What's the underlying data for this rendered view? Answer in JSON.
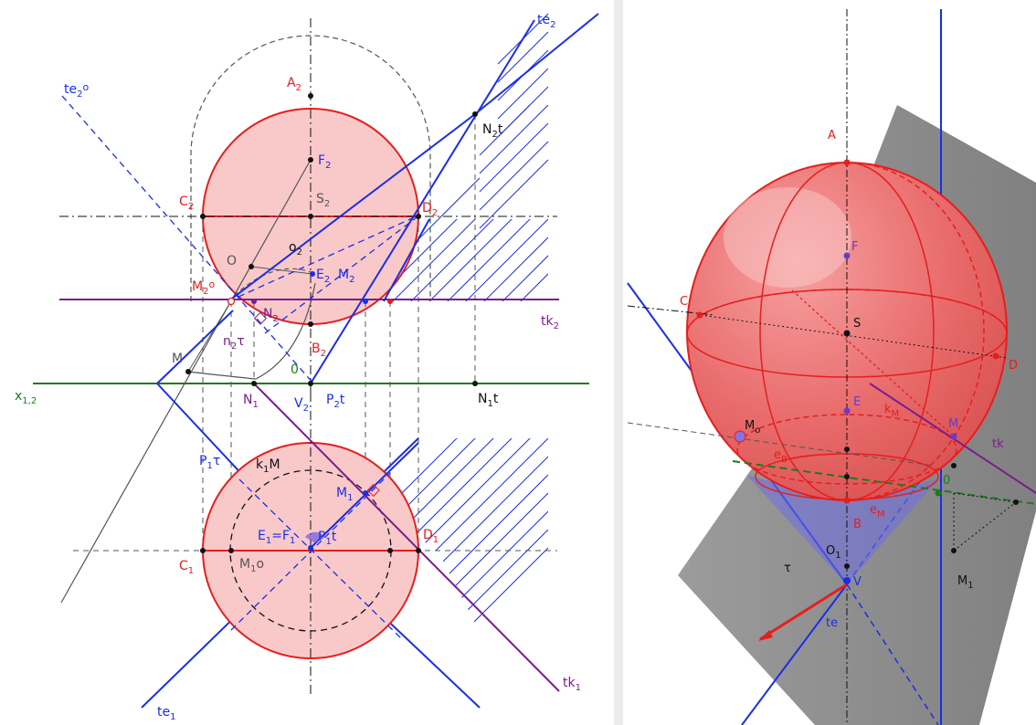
{
  "colors": {
    "red": "#e61e1e",
    "red_fill": "#f9c9c9",
    "blue": "#1a2ee6",
    "purple": "#7a1e8c",
    "green": "#1e7a1e",
    "gray": "#555555",
    "black": "#111111",
    "shadow": "#7a7a7a"
  },
  "left": {
    "labels": {
      "A2": "A",
      "A2_sub": "2",
      "F2": "F",
      "F2_sub": "2",
      "C2": "C",
      "C2_sub": "2",
      "S2": "S",
      "S2_sub": "2",
      "D2": "D",
      "D2_sub": "2",
      "o2": "o",
      "o2_sub": "2",
      "O": "O",
      "E2": "E",
      "E2_sub": "2",
      "M2": "M",
      "M2_sub": "2",
      "M2o": "M",
      "M2o_sub": "2",
      "M2o_sup": "o",
      "N2": "N",
      "N2_sub": "2",
      "n2t": "n",
      "n2t_sub": "2",
      "n2t_tau": "τ",
      "B2": "B",
      "B2_sub": "2",
      "M": "M",
      "zero": "0",
      "te2o": "te",
      "te2o_sub": "2",
      "te2o_sup": "o",
      "te2": "te",
      "te2_sub": "2",
      "N2t": "N",
      "N2t_sub": "2",
      "N2t_t": "t",
      "tk2": "tk",
      "tk2_sub": "2",
      "x12": "x",
      "x12_sub": "1,2",
      "N1": "N",
      "N1_sub": "1",
      "V2": "V",
      "V2_sub": "2",
      "P2t": "P",
      "P2t_sub": "2",
      "P2t_t": "t",
      "N1t": "N",
      "N1t_sub": "1",
      "N1t_t": "t",
      "P1t": "P",
      "P1t_sub": "1",
      "P1t_tau": "τ",
      "k1M": "k",
      "k1M_sub": "1",
      "k1M_M": "M",
      "M1": "M",
      "M1_sub": "1",
      "E1F1": "E",
      "E1F1_sub1": "1",
      "E1F1_eq": "=F",
      "E1F1_sub2": "1",
      "P1t2": "P",
      "P1t2_sub": "1",
      "P1t2_t": "t",
      "D1": "D",
      "D1_sub": "1",
      "C1": "C",
      "C1_sub": "1",
      "M1o": "M",
      "M1o_sub": "1",
      "M1o_o": "o",
      "tk1": "tk",
      "tk1_sub": "1",
      "te1": "te",
      "te1_sub": "1"
    }
  },
  "right": {
    "labels": {
      "A": "A",
      "F": "F",
      "C": "C",
      "S": "S",
      "D": "D",
      "E": "E",
      "kM": "k",
      "kM_sub": "M",
      "M": "M",
      "tk": "tk",
      "Mo": "M",
      "Mo_sub": "o",
      "eB": "e",
      "eB_sub": "B",
      "eM": "e",
      "eM_sub": "M",
      "zero": "0",
      "B": "B",
      "O1": "O",
      "O1_sub": "1",
      "tau": "τ",
      "V": "V",
      "M1": "M",
      "M1_sub": "1",
      "te": "te"
    }
  }
}
